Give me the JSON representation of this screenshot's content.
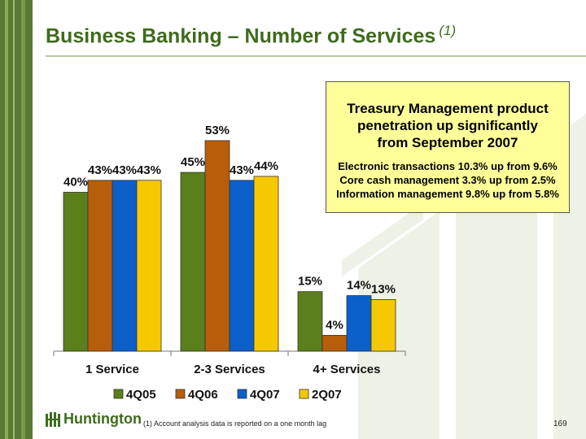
{
  "slide": {
    "title": "Business Banking – Number of Services",
    "title_superscript": "(1)",
    "footnote": "(1)   Account analysis data is reported on a one month lag",
    "page_number": "169",
    "logo_text": "Huntington",
    "logo_icon": "huntington-logo-icon"
  },
  "callout": {
    "headline_lines": [
      "Treasury Management product",
      "penetration up significantly",
      "from September 2007"
    ],
    "detail_lines": [
      "Electronic transactions 10.3% up from 9.6%",
      "Core cash management 3.3% up from 2.5%",
      "Information management 9.8% up from 5.8%"
    ]
  },
  "chart_data": {
    "type": "bar",
    "title": "",
    "xlabel": "",
    "ylabel": "",
    "categories": [
      "1 Service",
      "2-3 Services",
      "4+ Services"
    ],
    "series": [
      {
        "name": "4Q05",
        "values": [
          40,
          45,
          15
        ],
        "labels": [
          "40%",
          "45%",
          "15%"
        ],
        "color": "#5b7f1b"
      },
      {
        "name": "4Q06",
        "values": [
          43,
          53,
          4
        ],
        "labels": [
          "43%",
          "53%",
          "4%"
        ],
        "color": "#b85d0a"
      },
      {
        "name": "4Q07",
        "values": [
          43,
          43,
          14
        ],
        "labels": [
          "43%",
          "43%",
          "14%"
        ],
        "color": "#0a5fc9"
      },
      {
        "name": "2Q07",
        "values": [
          43,
          44,
          13
        ],
        "labels": [
          "43%",
          "44%",
          "13%"
        ],
        "color": "#f5c800"
      }
    ],
    "ylim": [
      0,
      60
    ],
    "grid": false,
    "legend_position": "bottom"
  }
}
